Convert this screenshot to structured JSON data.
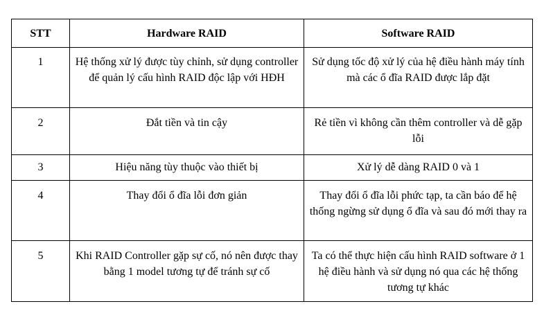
{
  "table": {
    "headers": [
      "STT",
      "Hardware RAID",
      "Software RAID"
    ],
    "rows": [
      {
        "stt": "1",
        "hardware": "Hệ thống xử lý được tùy chỉnh, sử dụng controller để quản lý cấu hình RAID độc lập với HĐH",
        "software": "Sử dụng tốc độ xử lý của hệ điều hành máy tính mà các ổ đĩa RAID được lắp đặt"
      },
      {
        "stt": "2",
        "hardware": "Đắt tiền và tin cậy",
        "software": "Rẻ tiền vì không cần thêm controller và dễ gặp lỗi"
      },
      {
        "stt": "3",
        "hardware": "Hiệu năng tùy thuộc vào thiết bị",
        "software": "Xử lý dễ dàng RAID 0 và 1"
      },
      {
        "stt": "4",
        "hardware": "Thay đổi ổ đĩa lỗi đơn giản",
        "software": "Thay đổi ổ đĩa lỗi phức tạp, ta cần báo để hệ thống ngừng sử dụng ổ đĩa và sau đó mới thay ra"
      },
      {
        "stt": "5",
        "hardware": "Khi RAID Controller gặp sự cố, nó nên được thay bằng 1 model tương tự để tránh sự cố",
        "software": "Ta có thể thực hiện cấu hình RAID software ở 1 hệ điều hành và sử dụng nó qua các hệ thống tương tự khác"
      }
    ]
  }
}
